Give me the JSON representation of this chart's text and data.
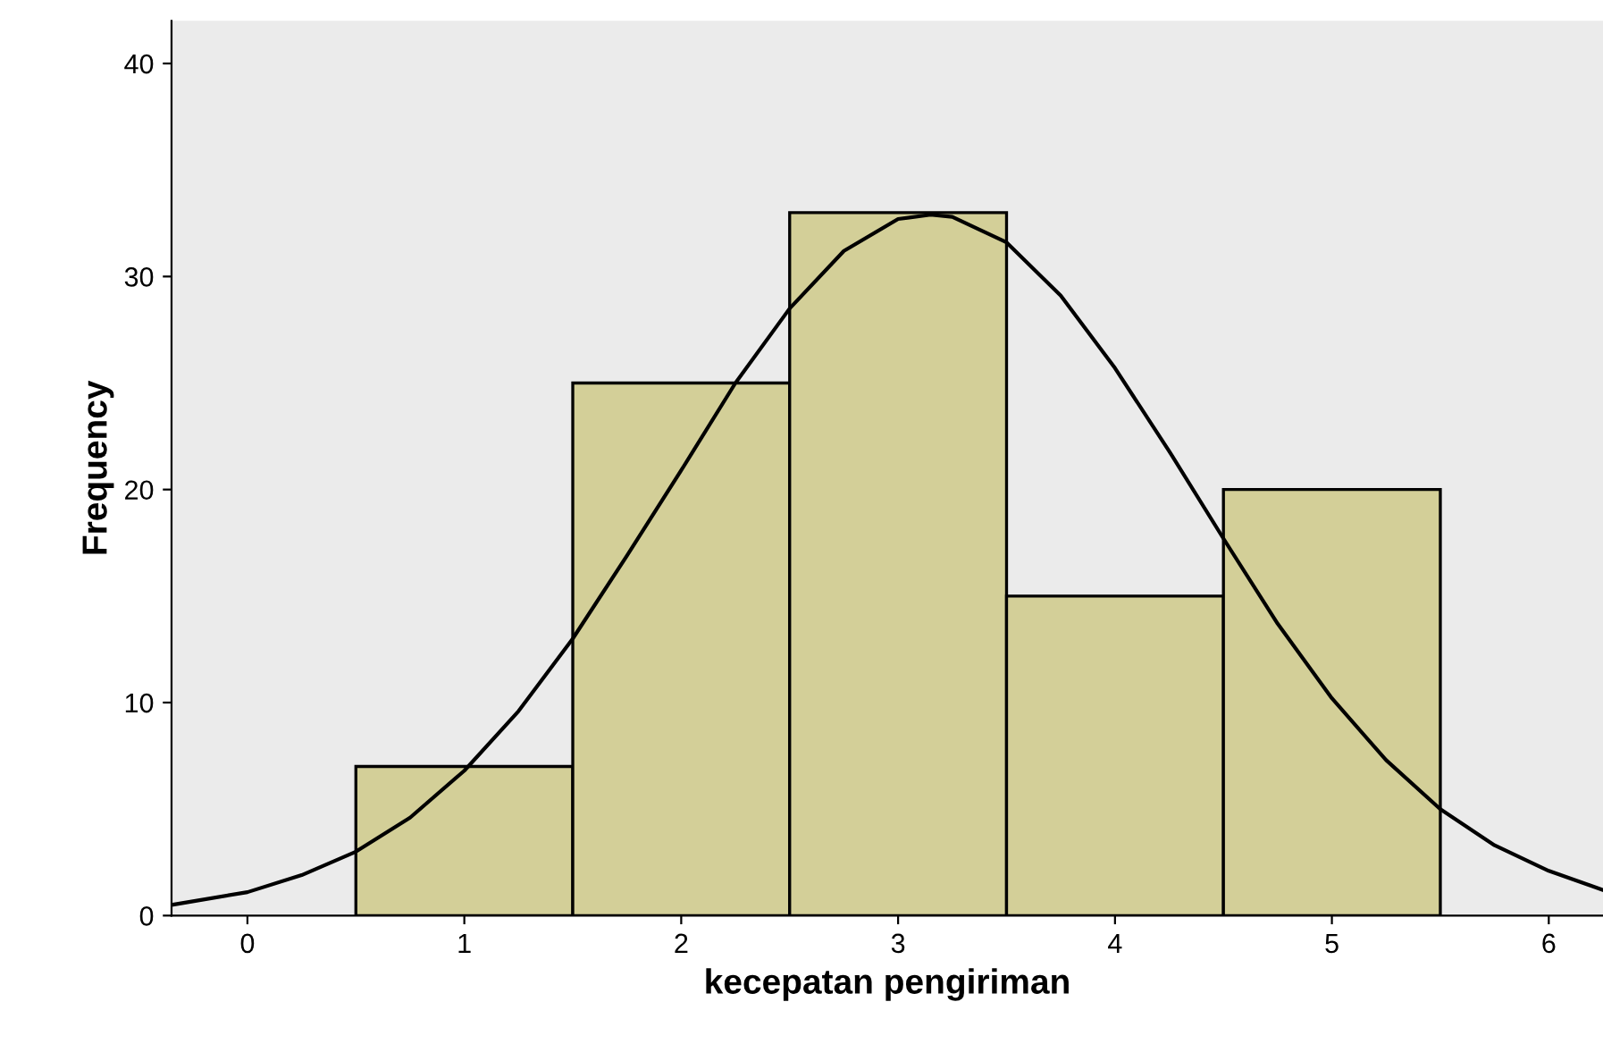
{
  "chart_data": {
    "type": "histogram",
    "xlabel": "kecepatan pengiriman",
    "ylabel": "Frequency",
    "bins": [
      0.5,
      1.5,
      2.5,
      3.5,
      4.5,
      5.5
    ],
    "values": [
      7,
      25,
      33,
      15,
      20
    ],
    "color": "#d3cf98",
    "series": [
      {
        "type": "line",
        "color": "#000000",
        "x": [
          -0.35,
          0,
          0.25,
          0.5,
          0.75,
          1,
          1.25,
          1.5,
          1.75,
          2,
          2.25,
          2.5,
          2.75,
          3,
          3.15,
          3.25,
          3.5,
          3.75,
          4,
          4.25,
          4.5,
          4.75,
          5,
          5.25,
          5.5,
          5.75,
          6,
          6.25
        ],
        "values": [
          0.5,
          1.1,
          1.9,
          3.0,
          4.6,
          6.8,
          9.6,
          13.0,
          16.9,
          20.9,
          25.0,
          28.5,
          31.2,
          32.7,
          32.9,
          32.8,
          31.6,
          29.1,
          25.7,
          21.8,
          17.7,
          13.7,
          10.2,
          7.3,
          5.0,
          3.3,
          2.1,
          1.2
        ]
      }
    ],
    "xlim": [
      -0.35,
      6.25
    ],
    "ylim": [
      0,
      42
    ],
    "xticks": [
      0,
      1,
      2,
      3,
      4,
      5,
      6
    ],
    "yticks": [
      0,
      10,
      20,
      30,
      40
    ],
    "grid": false,
    "legend": false
  }
}
